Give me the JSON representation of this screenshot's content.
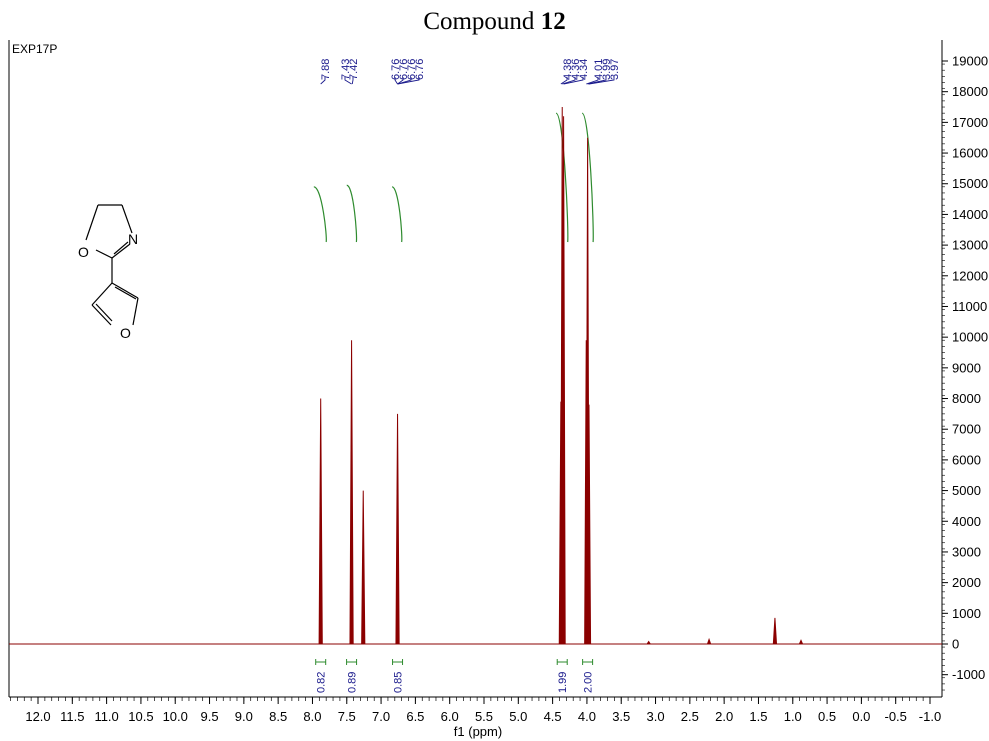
{
  "title": {
    "text": "Compound ",
    "number": "12"
  },
  "experiment_label": "EXP17P",
  "colors": {
    "spectrum": "#8b0000",
    "integral": "#2e8b2e",
    "peak_label": "#1a1a8c",
    "axis": "#000000"
  },
  "molecule": {
    "atoms": [
      "N",
      "O",
      "O"
    ],
    "description_icon": "furyl-oxazoline-structure-icon"
  },
  "chart_data": {
    "type": "line",
    "title": "Compound 12",
    "xlabel": "f1 (ppm)",
    "ylabel": "",
    "xlim": [
      12.5,
      -1.0
    ],
    "ylim": [
      -1700,
      19400
    ],
    "x_ticks": [
      12.0,
      11.5,
      11.0,
      10.5,
      10.0,
      9.5,
      9.0,
      8.5,
      8.0,
      7.5,
      7.0,
      6.5,
      6.0,
      5.5,
      5.0,
      4.5,
      4.0,
      3.5,
      3.0,
      2.5,
      2.0,
      1.5,
      1.0,
      0.5,
      0.0,
      -0.5,
      -1.0
    ],
    "x_tick_labels": [
      "12.0",
      "11.5",
      "11.0",
      "10.5",
      "10.0",
      "9.5",
      "9.0",
      "8.5",
      "8.0",
      "7.5",
      "7.0",
      "6.5",
      "6.0",
      "5.5",
      "5.0",
      "4.5",
      "4.0",
      "3.5",
      "3.0",
      "2.5",
      "2.0",
      "1.5",
      "1.0",
      "0.5",
      "0.0",
      "-0.5",
      "-1.0"
    ],
    "y_ticks": [
      19000,
      18000,
      17000,
      16000,
      15000,
      14000,
      13000,
      12000,
      11000,
      10000,
      9000,
      8000,
      7000,
      6000,
      5000,
      4000,
      3000,
      2000,
      1000,
      0,
      -1000
    ],
    "y_tick_labels": [
      "19000",
      "18000",
      "17000",
      "16000",
      "15000",
      "14000",
      "13000",
      "12000",
      "11000",
      "10000",
      "9000",
      "8000",
      "7000",
      "6000",
      "5000",
      "4000",
      "3000",
      "2000",
      "1000",
      "0",
      "-1000"
    ],
    "peaks": [
      {
        "ppm": 7.88,
        "height": 8000
      },
      {
        "ppm": 7.43,
        "height": 9900
      },
      {
        "ppm": 7.26,
        "height": 5000
      },
      {
        "ppm": 6.76,
        "height": 7500
      },
      {
        "ppm": 4.38,
        "height": 7900
      },
      {
        "ppm": 4.36,
        "height": 17500
      },
      {
        "ppm": 4.34,
        "height": 17200
      },
      {
        "ppm": 4.01,
        "height": 9900
      },
      {
        "ppm": 3.99,
        "height": 16500
      },
      {
        "ppm": 3.97,
        "height": 7800
      },
      {
        "ppm": 1.26,
        "height": 850
      },
      {
        "ppm": 0.88,
        "height": 120
      },
      {
        "ppm": 2.22,
        "height": 150
      },
      {
        "ppm": 3.1,
        "height": 80
      }
    ],
    "peak_groups": [
      {
        "labels": [
          "7.88"
        ],
        "ppms": [
          7.88
        ]
      },
      {
        "labels": [
          "7.43",
          "7.42"
        ],
        "ppms": [
          7.43,
          7.42
        ]
      },
      {
        "labels": [
          "6.76",
          "6.76",
          "6.76",
          "6.76"
        ],
        "ppms": [
          6.76,
          6.76,
          6.76,
          6.76
        ]
      },
      {
        "labels": [
          "4.38",
          "4.36",
          "4.34"
        ],
        "ppms": [
          4.38,
          4.36,
          4.34
        ]
      },
      {
        "labels": [
          "4.01",
          "3.99",
          "3.97"
        ],
        "ppms": [
          4.01,
          3.99,
          3.97
        ]
      }
    ],
    "integrals": [
      {
        "ppm": 7.88,
        "value": "0.82",
        "from": 7.98,
        "to": 7.8,
        "low": 13100,
        "high": 14900
      },
      {
        "ppm": 7.43,
        "value": "0.89",
        "from": 7.5,
        "to": 7.36,
        "low": 13100,
        "high": 14950
      },
      {
        "ppm": 6.76,
        "value": "0.85",
        "from": 6.84,
        "to": 6.7,
        "low": 13100,
        "high": 14900
      },
      {
        "ppm": 4.36,
        "value": "1.99",
        "from": 4.45,
        "to": 4.28,
        "low": 13100,
        "high": 17300
      },
      {
        "ppm": 3.99,
        "value": "2.00",
        "from": 4.07,
        "to": 3.91,
        "low": 13100,
        "high": 17300
      }
    ]
  }
}
